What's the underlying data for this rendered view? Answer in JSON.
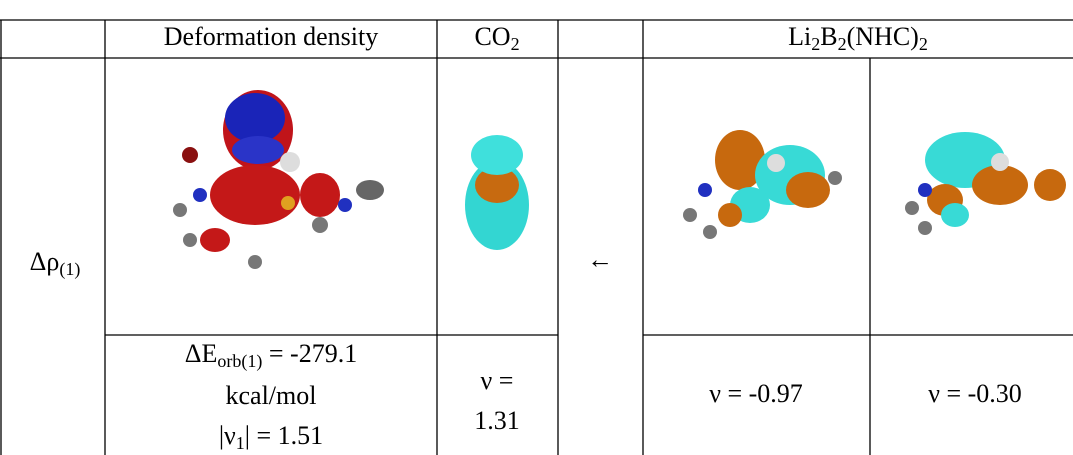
{
  "header": {
    "deformation_density": "Deformation density",
    "co2": [
      "CO",
      "2"
    ],
    "li2b2": [
      "Li",
      "2",
      "B",
      "2",
      "(NHC)",
      "2"
    ]
  },
  "row_label": [
    "Δρ",
    "(1)"
  ],
  "arrow": "←",
  "orbital_energy": {
    "line1": [
      "ΔE",
      "orb(1)",
      " = -279.1"
    ],
    "line2": "kcal/mol",
    "line3": [
      "|ν",
      "1",
      "| = 1.51"
    ]
  },
  "co2_nu": [
    "ν =",
    "1.31"
  ],
  "nu": [
    "ν = -0.97",
    "ν = -0.30"
  ]
}
